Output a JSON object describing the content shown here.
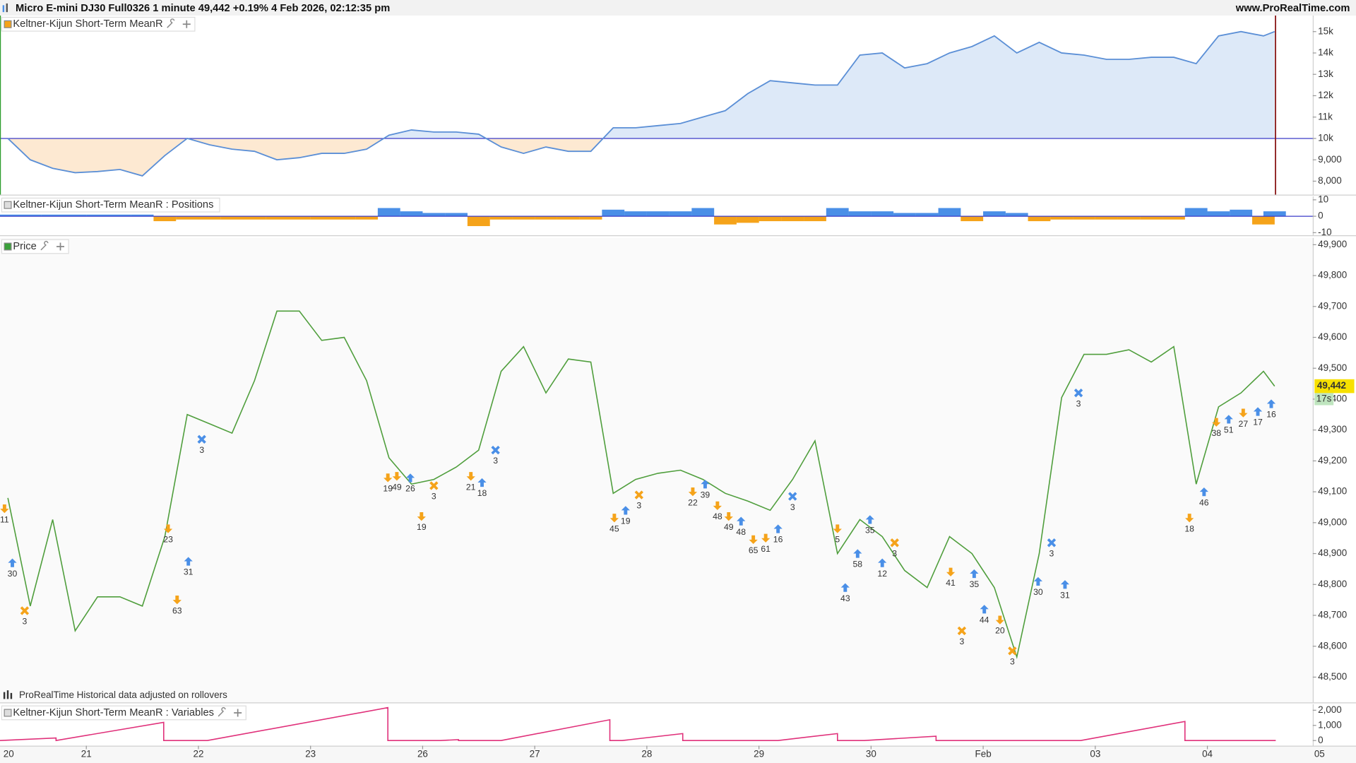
{
  "header": {
    "title": "Micro E-mini DJ30 Full0326 1 minute 49,442 +0.19% 4 Feb 2026, 02:12:35 pm",
    "site": "www.ProRealTime.com"
  },
  "chart_data": [
    {
      "type": "area",
      "title": "Keltner-Kijun Short-Term MeanR",
      "x": [
        0.3,
        0.5,
        0.7,
        0.9,
        1.1,
        1.3,
        1.5,
        1.7,
        1.9,
        2.1,
        2.3,
        2.5,
        2.7,
        2.9,
        3.1,
        3.3,
        3.5,
        3.7,
        3.9,
        4.1,
        4.3,
        4.5,
        4.7,
        4.9,
        5.1,
        5.3,
        5.5,
        5.7,
        5.9,
        6.1,
        6.3,
        6.5,
        6.7,
        6.9,
        7.1,
        7.3,
        7.5,
        7.7,
        7.9,
        8.1,
        8.3,
        8.5,
        8.7,
        8.9,
        9.1,
        9.3,
        9.5,
        9.7,
        9.9,
        10.1,
        10.3,
        10.5,
        10.7,
        10.9,
        11.1,
        11.3,
        11.5,
        11.6
      ],
      "values": [
        10000,
        9000,
        8600,
        8400,
        8450,
        8550,
        8250,
        9200,
        10000,
        9700,
        9500,
        9400,
        9000,
        9100,
        9300,
        9300,
        9500,
        10150,
        10400,
        10300,
        10300,
        10200,
        9600,
        9300,
        9600,
        9400,
        9400,
        10500,
        10500,
        10600,
        10700,
        11000,
        11300,
        12100,
        12700,
        12600,
        12500,
        12500,
        13900,
        14000,
        13300,
        13500,
        14000,
        14300,
        14800,
        14000,
        14500,
        14000,
        13900,
        13700,
        13700,
        13800,
        13800,
        13500,
        14800,
        15000,
        14800,
        15000
      ],
      "baseline": 10000,
      "color": "#5b8fd6",
      "baseline_color": "#3b3bc8",
      "fill_above": "#dde9f8",
      "fill_below": "#fde9d2",
      "xlim": [
        0.23,
        11.94
      ],
      "ylim": [
        7370,
        15750
      ],
      "yticks": [
        {
          "value": 8000,
          "label": "8,000"
        },
        {
          "value": 9000,
          "label": "9,000"
        },
        {
          "value": 10000,
          "label": "10k"
        },
        {
          "value": 11000,
          "label": "11k"
        },
        {
          "value": 12000,
          "label": "12k"
        },
        {
          "value": 13000,
          "label": "13k"
        },
        {
          "value": 14000,
          "label": "14k"
        },
        {
          "value": 15000,
          "label": "15k"
        }
      ]
    },
    {
      "type": "bar",
      "title": "Keltner-Kijun Short-Term MeanR : Positions",
      "x": [
        0.3,
        0.5,
        0.7,
        0.9,
        1.1,
        1.3,
        1.5,
        1.7,
        1.9,
        2.1,
        2.3,
        2.5,
        2.7,
        2.9,
        3.1,
        3.3,
        3.5,
        3.7,
        3.9,
        4.1,
        4.3,
        4.5,
        4.7,
        4.9,
        5.1,
        5.3,
        5.5,
        5.7,
        5.9,
        6.1,
        6.3,
        6.5,
        6.7,
        6.9,
        7.1,
        7.3,
        7.5,
        7.7,
        7.9,
        8.1,
        8.3,
        8.5,
        8.7,
        8.9,
        9.1,
        9.3,
        9.5,
        9.7,
        9.9,
        10.1,
        10.3,
        10.5,
        10.7,
        10.9,
        11.1,
        11.3,
        11.5,
        11.6
      ],
      "values": [
        1,
        1,
        1,
        1,
        1,
        1,
        1,
        -3,
        -2,
        -2,
        -2,
        -2,
        -2,
        -2,
        -2,
        -2,
        -2,
        5,
        3,
        2,
        2,
        -6,
        -2,
        -2,
        -2,
        -2,
        -2,
        4,
        3,
        3,
        3,
        5,
        -5,
        -4,
        -3,
        -3,
        -3,
        5,
        3,
        3,
        2,
        2,
        5,
        -3,
        3,
        2,
        -3,
        -2,
        -2,
        -2,
        -2,
        -2,
        -2,
        5,
        3,
        4,
        -5,
        3
      ],
      "positive_color": "#4a8fe7",
      "negative_color": "#f5a31a",
      "baseline_color": "#3b3bc8",
      "xlim": [
        0.23,
        11.94
      ],
      "ylim": [
        -11.6,
        12.1
      ],
      "yticks": [
        10,
        0,
        -10
      ]
    },
    {
      "type": "line",
      "title": "Price",
      "x": [
        0.3,
        0.5,
        0.7,
        0.9,
        1.1,
        1.3,
        1.5,
        1.7,
        1.9,
        2.1,
        2.3,
        2.5,
        2.7,
        2.9,
        3.1,
        3.3,
        3.5,
        3.7,
        3.9,
        4.1,
        4.3,
        4.5,
        4.7,
        4.9,
        5.1,
        5.3,
        5.5,
        5.7,
        5.9,
        6.1,
        6.3,
        6.5,
        6.7,
        6.9,
        7.1,
        7.3,
        7.5,
        7.7,
        7.9,
        8.1,
        8.3,
        8.5,
        8.7,
        8.9,
        9.1,
        9.3,
        9.5,
        9.7,
        9.9,
        10.1,
        10.3,
        10.5,
        10.7,
        10.9,
        11.1,
        11.3,
        11.5,
        11.6
      ],
      "values": [
        49080,
        48730,
        49010,
        48650,
        48760,
        48760,
        48730,
        48955,
        49350,
        49320,
        49290,
        49460,
        49685,
        49685,
        49590,
        49600,
        49460,
        49210,
        49125,
        49140,
        49180,
        49235,
        49490,
        49570,
        49420,
        49530,
        49520,
        49095,
        49140,
        49160,
        49170,
        49140,
        49095,
        49070,
        49040,
        49140,
        49265,
        48900,
        49010,
        48955,
        48845,
        48790,
        48955,
        48900,
        48790,
        48565,
        48900,
        49405,
        49545,
        49545,
        49560,
        49520,
        49570,
        49125,
        49375,
        49420,
        49490,
        49442
      ],
      "color": "#4f9e3c",
      "xlim": [
        0.23,
        11.94
      ],
      "ylim": [
        48418,
        49922
      ],
      "yticks": [
        {
          "value": 48500,
          "label": "48,500"
        },
        {
          "value": 48600,
          "label": "48,600"
        },
        {
          "value": 48700,
          "label": "48,700"
        },
        {
          "value": 48800,
          "label": "48,800"
        },
        {
          "value": 48900,
          "label": "48,900"
        },
        {
          "value": 49000,
          "label": "49,000"
        },
        {
          "value": 49100,
          "label": "49,100"
        },
        {
          "value": 49200,
          "label": "49,200"
        },
        {
          "value": 49300,
          "label": "49,300"
        },
        {
          "value": 49400,
          "label": "49,400"
        },
        {
          "value": 49500,
          "label": "49,500"
        },
        {
          "value": 49600,
          "label": "49,600"
        },
        {
          "value": 49700,
          "label": "49,700"
        },
        {
          "value": 49800,
          "label": "49,800"
        },
        {
          "value": 49900,
          "label": "49,900"
        }
      ],
      "current": {
        "value": 49442,
        "label": "49,442"
      },
      "countdown": "17s",
      "note": "ProRealTime Historical data adjusted on rollovers",
      "trades": [
        {
          "x": 0.27,
          "price": 49045,
          "qty": 11,
          "marker": "down",
          "color": "#f5a31a"
        },
        {
          "x": 0.34,
          "price": 48870,
          "qty": 30,
          "marker": "up",
          "color": "#4a8fe7"
        },
        {
          "x": 0.45,
          "price": 48715,
          "qty": 3,
          "marker": "cross",
          "color": "#f5a31a"
        },
        {
          "x": 1.73,
          "price": 48980,
          "qty": 23,
          "marker": "down",
          "color": "#f5a31a"
        },
        {
          "x": 1.91,
          "price": 48875,
          "qty": 31,
          "marker": "up",
          "color": "#4a8fe7"
        },
        {
          "x": 1.81,
          "price": 48750,
          "qty": 63,
          "marker": "down",
          "color": "#f5a31a"
        },
        {
          "x": 2.03,
          "price": 49270,
          "qty": 3,
          "marker": "cross",
          "color": "#4a8fe7"
        },
        {
          "x": 3.69,
          "price": 49145,
          "qty": 19,
          "marker": "down",
          "color": "#f5a31a"
        },
        {
          "x": 3.77,
          "price": 49150,
          "qty": 49,
          "marker": "down",
          "color": "#f5a31a"
        },
        {
          "x": 3.89,
          "price": 49145,
          "qty": 26,
          "marker": "up",
          "color": "#4a8fe7"
        },
        {
          "x": 4.1,
          "price": 49120,
          "qty": 3,
          "marker": "cross",
          "color": "#f5a31a"
        },
        {
          "x": 3.99,
          "price": 49020,
          "qty": 19,
          "marker": "down",
          "color": "#f5a31a"
        },
        {
          "x": 4.43,
          "price": 49150,
          "qty": 21,
          "marker": "down",
          "color": "#f5a31a"
        },
        {
          "x": 4.53,
          "price": 49130,
          "qty": 18,
          "marker": "up",
          "color": "#4a8fe7"
        },
        {
          "x": 4.65,
          "price": 49235,
          "qty": 3,
          "marker": "cross",
          "color": "#4a8fe7"
        },
        {
          "x": 5.71,
          "price": 49015,
          "qty": 45,
          "marker": "down",
          "color": "#f5a31a"
        },
        {
          "x": 5.81,
          "price": 49040,
          "qty": 19,
          "marker": "up",
          "color": "#4a8fe7"
        },
        {
          "x": 5.93,
          "price": 49090,
          "qty": 3,
          "marker": "cross",
          "color": "#f5a31a"
        },
        {
          "x": 6.41,
          "price": 49100,
          "qty": 22,
          "marker": "down",
          "color": "#f5a31a"
        },
        {
          "x": 6.52,
          "price": 49125,
          "qty": 39,
          "marker": "up",
          "color": "#4a8fe7"
        },
        {
          "x": 6.63,
          "price": 49055,
          "qty": 48,
          "marker": "down",
          "color": "#f5a31a"
        },
        {
          "x": 6.73,
          "price": 49020,
          "qty": 49,
          "marker": "down",
          "color": "#f5a31a"
        },
        {
          "x": 6.84,
          "price": 49005,
          "qty": 48,
          "marker": "up",
          "color": "#4a8fe7"
        },
        {
          "x": 7.3,
          "price": 49085,
          "qty": 3,
          "marker": "cross",
          "color": "#4a8fe7"
        },
        {
          "x": 6.95,
          "price": 48945,
          "qty": 65,
          "marker": "down",
          "color": "#f5a31a"
        },
        {
          "x": 7.06,
          "price": 48950,
          "qty": 61,
          "marker": "down",
          "color": "#f5a31a"
        },
        {
          "x": 7.17,
          "price": 48980,
          "qty": 16,
          "marker": "up",
          "color": "#4a8fe7"
        },
        {
          "x": 7.7,
          "price": 48980,
          "qty": 5,
          "marker": "down",
          "color": "#f5a31a"
        },
        {
          "x": 7.77,
          "price": 48790,
          "qty": 43,
          "marker": "up",
          "color": "#4a8fe7"
        },
        {
          "x": 7.99,
          "price": 49010,
          "qty": 35,
          "marker": "up",
          "color": "#4a8fe7"
        },
        {
          "x": 7.88,
          "price": 48900,
          "qty": 58,
          "marker": "up",
          "color": "#4a8fe7"
        },
        {
          "x": 8.21,
          "price": 48935,
          "qty": 3,
          "marker": "cross",
          "color": "#f5a31a"
        },
        {
          "x": 8.1,
          "price": 48870,
          "qty": 12,
          "marker": "up",
          "color": "#4a8fe7"
        },
        {
          "x": 8.71,
          "price": 48840,
          "qty": 41,
          "marker": "down",
          "color": "#f5a31a"
        },
        {
          "x": 8.92,
          "price": 48835,
          "qty": 35,
          "marker": "up",
          "color": "#4a8fe7"
        },
        {
          "x": 9.01,
          "price": 48720,
          "qty": 44,
          "marker": "up",
          "color": "#4a8fe7"
        },
        {
          "x": 8.81,
          "price": 48650,
          "qty": 3,
          "marker": "cross",
          "color": "#f5a31a"
        },
        {
          "x": 9.15,
          "price": 48685,
          "qty": 20,
          "marker": "down",
          "color": "#f5a31a"
        },
        {
          "x": 9.26,
          "price": 48585,
          "qty": 3,
          "marker": "cross",
          "color": "#f5a31a"
        },
        {
          "x": 9.49,
          "price": 48810,
          "qty": 30,
          "marker": "up",
          "color": "#4a8fe7"
        },
        {
          "x": 9.61,
          "price": 48935,
          "qty": 3,
          "marker": "cross",
          "color": "#4a8fe7"
        },
        {
          "x": 9.73,
          "price": 48800,
          "qty": 31,
          "marker": "up",
          "color": "#4a8fe7"
        },
        {
          "x": 9.85,
          "price": 49420,
          "qty": 3,
          "marker": "cross",
          "color": "#4a8fe7"
        },
        {
          "x": 10.84,
          "price": 49015,
          "qty": 18,
          "marker": "down",
          "color": "#f5a31a"
        },
        {
          "x": 10.97,
          "price": 49100,
          "qty": 46,
          "marker": "up",
          "color": "#4a8fe7"
        },
        {
          "x": 11.08,
          "price": 49325,
          "qty": 38,
          "marker": "down",
          "color": "#f5a31a"
        },
        {
          "x": 11.19,
          "price": 49335,
          "qty": 51,
          "marker": "up",
          "color": "#4a8fe7"
        },
        {
          "x": 11.32,
          "price": 49355,
          "qty": 27,
          "marker": "down",
          "color": "#f5a31a"
        },
        {
          "x": 11.45,
          "price": 49360,
          "qty": 17,
          "marker": "up",
          "color": "#4a8fe7"
        },
        {
          "x": 11.57,
          "price": 49385,
          "qty": 16,
          "marker": "up",
          "color": "#4a8fe7"
        }
      ]
    },
    {
      "type": "line",
      "title": "Keltner-Kijun Short-Term MeanR : Variables",
      "x": [
        0.23,
        0.73,
        0.73,
        1.69,
        1.69,
        2.08,
        3.69,
        3.69,
        4.16,
        4.32,
        4.32,
        4.7,
        5.67,
        5.67,
        5.78,
        6.32,
        6.32,
        7.17,
        7.7,
        7.7,
        7.94,
        8.58,
        8.58,
        9.87,
        10.8,
        10.8,
        11.61
      ],
      "values": [
        0,
        170,
        0,
        1200,
        0,
        0,
        2170,
        0,
        0,
        60,
        0,
        0,
        1370,
        0,
        0,
        460,
        0,
        0,
        460,
        0,
        0,
        290,
        0,
        0,
        1260,
        0,
        0
      ],
      "color": "#e0307a",
      "xlim": [
        0.23,
        11.94
      ],
      "ylim": [
        -340,
        2400
      ],
      "yticks": [
        {
          "value": 2000,
          "label": "2,000"
        },
        {
          "value": 1000,
          "label": "1,000"
        },
        0
      ],
      "xticks": [
        {
          "value": 0,
          "label": "20"
        },
        {
          "value": 1,
          "label": "21"
        },
        {
          "value": 2,
          "label": "22"
        },
        {
          "value": 3,
          "label": "23"
        },
        {
          "value": 4,
          "label": "26"
        },
        {
          "value": 5,
          "label": "27"
        },
        {
          "value": 6,
          "label": "28"
        },
        {
          "value": 7,
          "label": "29"
        },
        {
          "value": 8,
          "label": "30"
        },
        {
          "value": 9,
          "label": "Feb"
        },
        {
          "value": 10,
          "label": "03"
        },
        {
          "value": 11,
          "label": "04"
        },
        {
          "value": 12,
          "label": "05"
        }
      ]
    }
  ]
}
